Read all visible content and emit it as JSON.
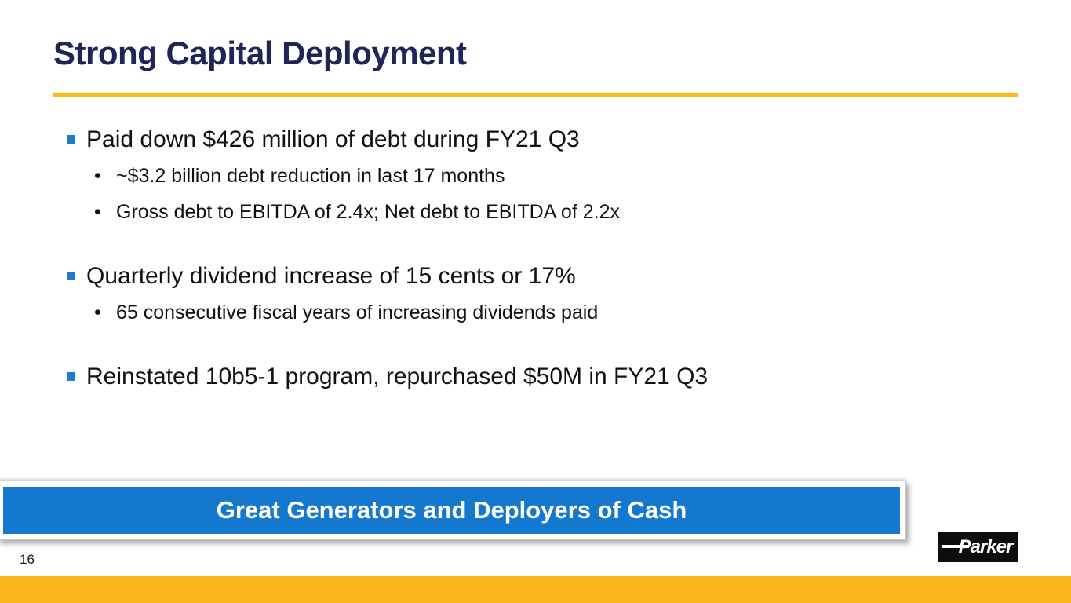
{
  "slide": {
    "title": "Strong Capital Deployment",
    "page_number": "16",
    "bullets": [
      {
        "text": "Paid down $426 million of debt during FY21 Q3",
        "sub": [
          "~$3.2 billion debt reduction in last 17 months",
          "Gross debt to EBITDA of 2.4x; Net debt to EBITDA of 2.2x"
        ]
      },
      {
        "text": "Quarterly dividend increase of 15 cents or 17%",
        "sub": [
          "65 consecutive fiscal years of increasing dividends paid"
        ]
      },
      {
        "text": "Reinstated 10b5-1 program, repurchased $50M in FY21 Q3",
        "sub": []
      }
    ],
    "banner": {
      "label": "Great Generators and Deployers of Cash"
    },
    "logo": {
      "text": "Parker"
    },
    "colors": {
      "title_navy": "#1F2557",
      "accent_gold": "#FBBA12",
      "footer_gold": "#FCB61B",
      "banner_blue": "#1478CE",
      "bullet_blue": "#1E79C8"
    }
  }
}
